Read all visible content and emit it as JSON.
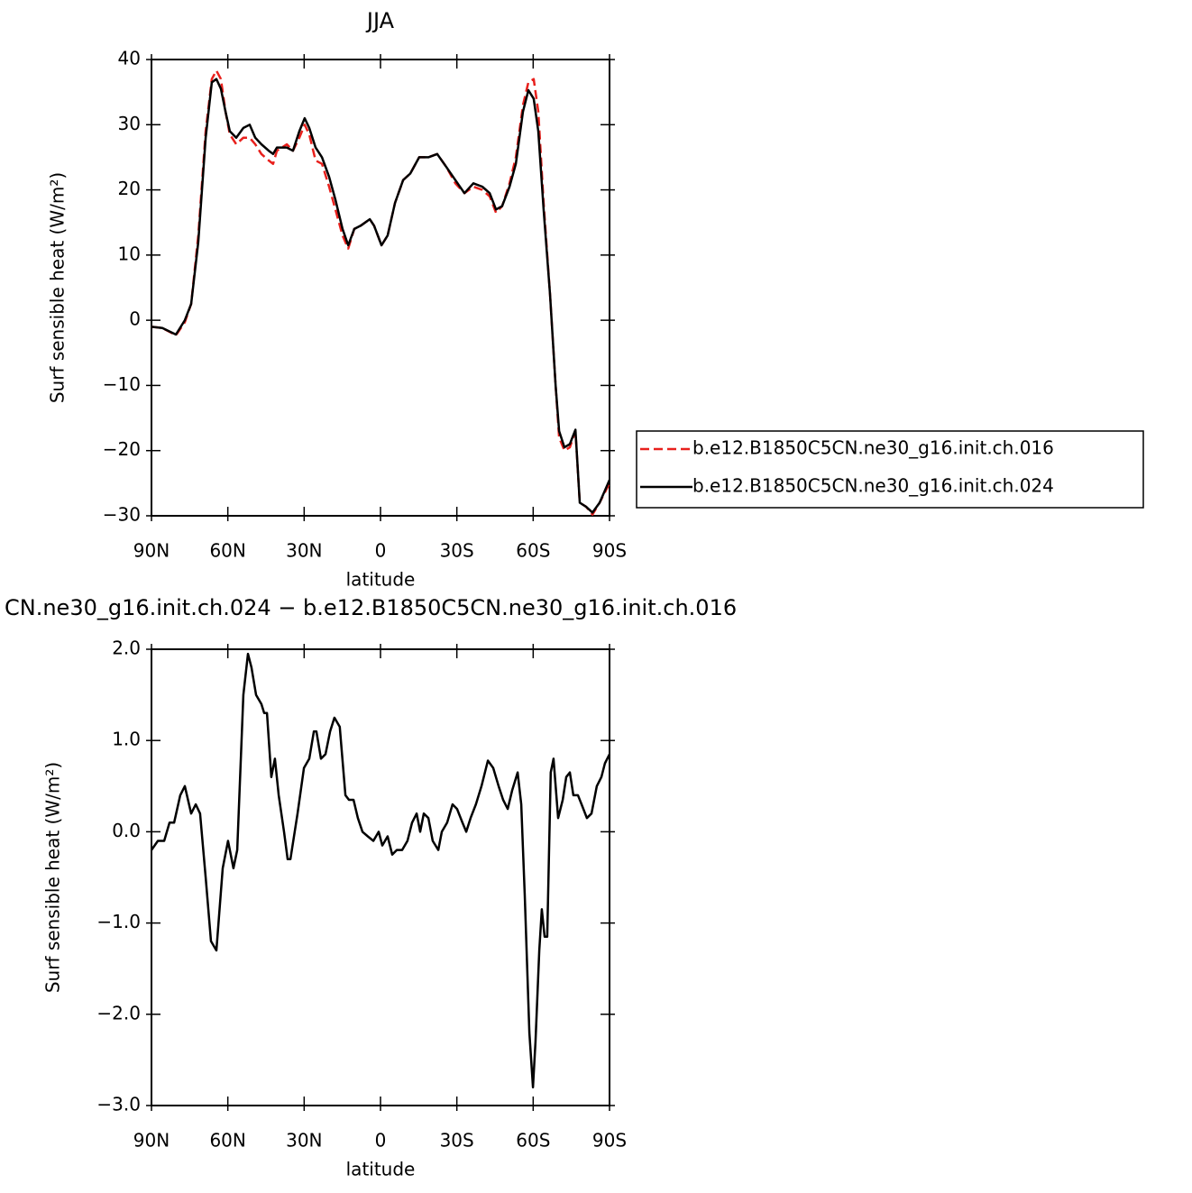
{
  "chart_data": [
    {
      "type": "line",
      "title": "JJA",
      "xlabel": "latitude",
      "ylabel": "Surf sensible heat (W/m²)",
      "x": [
        90,
        85.7,
        80.4,
        76.9,
        74.4,
        71.6,
        68.7,
        66.3,
        64.5,
        62.7,
        60.9,
        59.2,
        56.7,
        53.9,
        51.4,
        49.2,
        46.8,
        43.9,
        42.2,
        40.7,
        36.8,
        34.4,
        31.9,
        29.8,
        28,
        25.5,
        23,
        20.2,
        17.7,
        14.9,
        12.7,
        10.3,
        7.8,
        4.2,
        2.5,
        -0.4,
        -2.8,
        -5.7,
        -8.9,
        -11.7,
        -15.2,
        -18.8,
        -22.3,
        -25.9,
        -29.4,
        -33,
        -36.5,
        -40,
        -42.9,
        -45.4,
        -47.8,
        -50.7,
        -53.2,
        -56,
        -58.1,
        -60.2,
        -62,
        -64.1,
        -66.6,
        -68.8,
        -70.2,
        -72.3,
        -74.4,
        -76.6,
        -78.3,
        -80.8,
        -83.3,
        -86.1,
        -90
      ],
      "series": [
        {
          "name": "b.e12.B1850C5CN.ne30_g16.init.ch.016",
          "color": "#e8201c",
          "dashed": true,
          "values": [
            -1,
            -1.2,
            -2.3,
            -0.3,
            2.5,
            13,
            29,
            37,
            38.3,
            37,
            32,
            28.5,
            27,
            28,
            28,
            27,
            25.5,
            24.5,
            24,
            26,
            27,
            26,
            28,
            30,
            28.5,
            24.5,
            24,
            20.5,
            17,
            13,
            11,
            14,
            14.5,
            15.5,
            14.5,
            11.5,
            13,
            18,
            21.5,
            22.5,
            25,
            25,
            25.5,
            23.5,
            21,
            19.5,
            20.5,
            20,
            19,
            16.5,
            17.5,
            21,
            25,
            33,
            36.5,
            37,
            32,
            18,
            4,
            -10,
            -18,
            -20,
            -19.5,
            -17,
            -28,
            -28.6,
            -29.8,
            -28,
            -25
          ]
        },
        {
          "name": "b.e12.B1850C5CN.ne30_g16.init.ch.024",
          "color": "#000000",
          "dashed": false,
          "values": [
            -1,
            -1.2,
            -2.2,
            0,
            2.5,
            12,
            28,
            36.5,
            37,
            35.5,
            32,
            29,
            28,
            29.5,
            30,
            28,
            27,
            26,
            25.5,
            26.5,
            26.5,
            26,
            29,
            31,
            29.5,
            26.5,
            25,
            22,
            18.5,
            14,
            11.5,
            14,
            14.5,
            15.5,
            14.5,
            11.5,
            13,
            18,
            21.5,
            22.5,
            25,
            25,
            25.5,
            23.5,
            21.5,
            19.5,
            21,
            20.5,
            19.5,
            17,
            17.5,
            20.5,
            24,
            32,
            35.3,
            34,
            29,
            17,
            4,
            -10,
            -17,
            -19.5,
            -19,
            -16.8,
            -28,
            -28.6,
            -29.5,
            -28,
            -24.5
          ]
        }
      ],
      "xlim": [
        90,
        -90
      ],
      "xticks": [
        {
          "value": 90,
          "label": "90N"
        },
        {
          "value": 60,
          "label": "60N"
        },
        {
          "value": 30,
          "label": "30N"
        },
        0,
        {
          "value": -30,
          "label": "30S"
        },
        {
          "value": -60,
          "label": "60S"
        },
        {
          "value": -90,
          "label": "90S"
        }
      ],
      "ylim": [
        -30,
        40
      ],
      "yticks": [
        {
          "value": -30,
          "label": "−30"
        },
        {
          "value": -20,
          "label": "−20"
        },
        {
          "value": -10,
          "label": "−10"
        },
        0,
        10,
        20,
        30,
        40
      ],
      "legend": "right"
    },
    {
      "type": "line",
      "title": "CN.ne30_g16.init.ch.024 − b.e12.B1850C5CN.ne30_g16.init.ch.016",
      "xlabel": "latitude",
      "ylabel": "Surf sensible heat (W/m²)",
      "x": [
        90,
        87.5,
        85.0,
        82.9,
        81.1,
        78.7,
        76.9,
        74.4,
        72.6,
        70.9,
        68.7,
        66.6,
        64.5,
        62.0,
        59.9,
        57.8,
        56.3,
        53.9,
        52.1,
        50.7,
        48.9,
        46.8,
        45.7,
        44.6,
        42.9,
        41.5,
        40.0,
        37.9,
        36.5,
        35.4,
        32.6,
        30.1,
        28.0,
        26.2,
        25.2,
        23.4,
        21.6,
        19.8,
        18.1,
        16.0,
        13.8,
        12.4,
        10.6,
        8.9,
        7.1,
        5.0,
        2.8,
        0.7,
        -0.7,
        -2.8,
        -4.6,
        -6.4,
        -8.5,
        -10.6,
        -12.4,
        -14.2,
        -15.6,
        -17.0,
        -18.8,
        -20.5,
        -22.7,
        -24.1,
        -26.2,
        -28.3,
        -30.1,
        -32.2,
        -33.7,
        -35.4,
        -37.5,
        -39.7,
        -42.2,
        -44.3,
        -46.4,
        -48.2,
        -50.0,
        -51.7,
        -53.9,
        -55.3,
        -56.7,
        -58.5,
        -59.9,
        -60.9,
        -62.4,
        -63.4,
        -64.5,
        -65.5,
        -66.9,
        -68.0,
        -69.8,
        -71.6,
        -73.0,
        -74.4,
        -75.8,
        -77.6,
        -79.0,
        -81.1,
        -82.9,
        -85.0,
        -86.8,
        -88.2,
        -90
      ],
      "series": [
        {
          "color": "#000000",
          "dashed": false,
          "values": [
            -0.2,
            -0.1,
            -0.1,
            0.1,
            0.1,
            0.4,
            0.5,
            0.2,
            0.3,
            0.2,
            -0.5,
            -1.2,
            -1.3,
            -0.4,
            -0.1,
            -0.4,
            -0.2,
            1.5,
            1.95,
            1.8,
            1.5,
            1.4,
            1.3,
            1.3,
            0.6,
            0.8,
            0.4,
            0.0,
            -0.3,
            -0.3,
            0.2,
            0.7,
            0.8,
            1.1,
            1.1,
            0.8,
            0.85,
            1.1,
            1.25,
            1.15,
            0.4,
            0.35,
            0.35,
            0.15,
            0.0,
            -0.05,
            -0.1,
            0.0,
            -0.15,
            -0.05,
            -0.25,
            -0.2,
            -0.2,
            -0.1,
            0.1,
            0.2,
            0.0,
            0.2,
            0.15,
            -0.1,
            -0.2,
            0.0,
            0.1,
            0.3,
            0.25,
            0.1,
            0.0,
            0.15,
            0.3,
            0.5,
            0.78,
            0.7,
            0.5,
            0.35,
            0.25,
            0.45,
            0.65,
            0.3,
            -0.7,
            -2.2,
            -2.8,
            -2.3,
            -1.3,
            -0.85,
            -1.15,
            -1.15,
            0.65,
            0.8,
            0.15,
            0.35,
            0.6,
            0.65,
            0.4,
            0.4,
            0.3,
            0.15,
            0.2,
            0.5,
            0.6,
            0.75,
            0.85
          ]
        }
      ],
      "xlim": [
        90,
        -90
      ],
      "xticks": [
        {
          "value": 90,
          "label": "90N"
        },
        {
          "value": 60,
          "label": "60N"
        },
        {
          "value": 30,
          "label": "30N"
        },
        0,
        {
          "value": -30,
          "label": "30S"
        },
        {
          "value": -60,
          "label": "60S"
        },
        {
          "value": -90,
          "label": "90S"
        }
      ],
      "ylim": [
        -3,
        2
      ],
      "yticks": [
        {
          "value": -3,
          "label": "−3.0"
        },
        {
          "value": -2,
          "label": "−2.0"
        },
        {
          "value": -1,
          "label": "−1.0"
        },
        {
          "value": 0,
          "label": "0.0"
        },
        {
          "value": 1,
          "label": "1.0"
        },
        {
          "value": 2,
          "label": "2.0"
        }
      ]
    }
  ]
}
